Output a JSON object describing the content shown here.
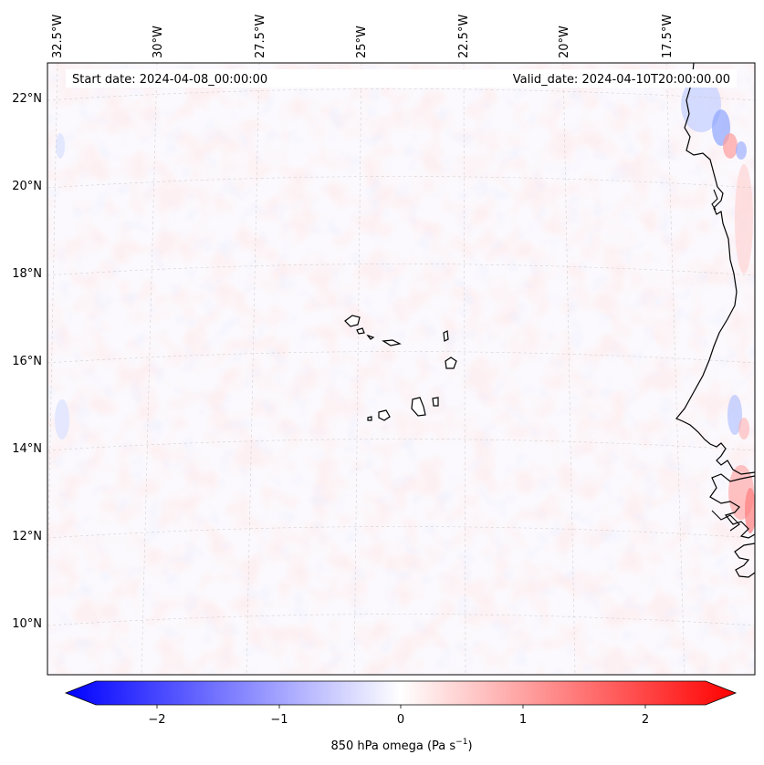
{
  "map": {
    "start_date": "Start date: 2024-04-08_00:00:00",
    "valid_date": "Valid_date: 2024-04-10T20:00:00.00",
    "lon_labels": [
      "32.5°W",
      "30°W",
      "27.5°W",
      "25°W",
      "22.5°W",
      "20°W",
      "17.5°W"
    ],
    "lat_labels": [
      "22°N",
      "20°N",
      "18°N",
      "16°N",
      "14°N",
      "12°N",
      "10°N"
    ]
  },
  "colorbar": {
    "label": "850 hPa omega (Pa s",
    "label_exp": "−1",
    "label_close": ")",
    "ticks": [
      "−2",
      "−1",
      "0",
      "1",
      "2"
    ],
    "range": [
      -2.6,
      2.6
    ],
    "colors": {
      "low": "#0000ff",
      "mid": "#ffffff",
      "high": "#ff0000"
    }
  }
}
